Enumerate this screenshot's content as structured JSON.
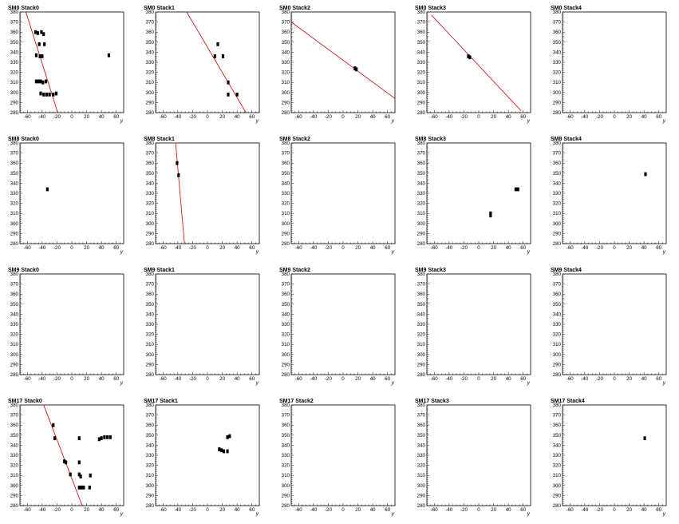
{
  "chart_data": [
    {
      "type": "scatter",
      "title": "SM0 Stack0",
      "xlabel": "y",
      "xlim": [
        -70,
        70
      ],
      "ylim": [
        280,
        380
      ],
      "xticks": [
        -60,
        -40,
        -20,
        0,
        20,
        40,
        60
      ],
      "yticks": [
        280,
        290,
        300,
        310,
        320,
        330,
        340,
        350,
        360,
        370,
        380
      ],
      "points": [
        [
          -49,
          360
        ],
        [
          -46,
          359
        ],
        [
          -41,
          360
        ],
        [
          -38,
          358
        ],
        [
          -44,
          348
        ],
        [
          -37,
          348
        ],
        [
          -48,
          337
        ],
        [
          -43,
          336
        ],
        [
          -40,
          336
        ],
        [
          -48,
          311
        ],
        [
          -45,
          311
        ],
        [
          -42,
          311
        ],
        [
          -39,
          310
        ],
        [
          -35,
          311
        ],
        [
          -42,
          299
        ],
        [
          -38,
          298
        ],
        [
          -34,
          298
        ],
        [
          -30,
          298
        ],
        [
          -25,
          298
        ],
        [
          -21,
          299
        ],
        [
          50,
          337
        ]
      ],
      "line": {
        "x": [
          -62,
          -19
        ],
        "y": [
          380,
          280
        ]
      }
    },
    {
      "type": "scatter",
      "title": "SM0 Stack1",
      "xlabel": "y",
      "xlim": [
        -70,
        70
      ],
      "ylim": [
        280,
        380
      ],
      "xticks": [
        -60,
        -40,
        -20,
        0,
        20,
        40,
        60
      ],
      "yticks": [
        280,
        290,
        300,
        310,
        320,
        330,
        340,
        350,
        360,
        370,
        380
      ],
      "points": [
        [
          14,
          348
        ],
        [
          10,
          336
        ],
        [
          21,
          336
        ],
        [
          28,
          310
        ],
        [
          28,
          298
        ],
        [
          40,
          298
        ]
      ],
      "line": {
        "x": [
          -28,
          52
        ],
        "y": [
          380,
          280
        ]
      }
    },
    {
      "type": "scatter",
      "title": "SM0 Stack2",
      "xlabel": "y",
      "xlim": [
        -70,
        70
      ],
      "ylim": [
        280,
        380
      ],
      "xticks": [
        -60,
        -40,
        -20,
        0,
        20,
        40,
        60
      ],
      "yticks": [
        280,
        290,
        300,
        310,
        320,
        330,
        340,
        350,
        360,
        370,
        380
      ],
      "points": [
        [
          16,
          324
        ],
        [
          18,
          323
        ]
      ],
      "line": {
        "x": [
          -70,
          70
        ],
        "y": [
          370,
          294
        ]
      }
    },
    {
      "type": "scatter",
      "title": "SM0 Stack3",
      "xlabel": "y",
      "xlim": [
        -70,
        70
      ],
      "ylim": [
        280,
        380
      ],
      "xticks": [
        -60,
        -40,
        -20,
        0,
        20,
        40,
        60
      ],
      "yticks": [
        280,
        290,
        300,
        310,
        320,
        330,
        340,
        350,
        360,
        370,
        380
      ],
      "points": [
        [
          -14,
          336
        ],
        [
          -12,
          335
        ]
      ],
      "line": {
        "x": [
          -64,
          57
        ],
        "y": [
          377,
          282
        ]
      }
    },
    {
      "type": "scatter",
      "title": "SM0 Stack4",
      "xlabel": "y",
      "xlim": [
        -70,
        70
      ],
      "ylim": [
        280,
        380
      ],
      "xticks": [
        -60,
        -40,
        -20,
        0,
        20,
        40,
        60
      ],
      "yticks": [
        280,
        290,
        300,
        310,
        320,
        330,
        340,
        350,
        360,
        370,
        380
      ],
      "points": []
    },
    {
      "type": "scatter",
      "title": "SM8 Stack0",
      "xlabel": "y",
      "xlim": [
        -70,
        70
      ],
      "ylim": [
        280,
        380
      ],
      "xticks": [
        -60,
        -40,
        -20,
        0,
        20,
        40,
        60
      ],
      "yticks": [
        280,
        290,
        300,
        310,
        320,
        330,
        340,
        350,
        360,
        370,
        380
      ],
      "points": [
        [
          -33,
          334
        ]
      ]
    },
    {
      "type": "scatter",
      "title": "SM8 Stack1",
      "xlabel": "y",
      "xlim": [
        -70,
        70
      ],
      "ylim": [
        280,
        380
      ],
      "xticks": [
        -60,
        -40,
        -20,
        0,
        20,
        40,
        60
      ],
      "yticks": [
        280,
        290,
        300,
        310,
        320,
        330,
        340,
        350,
        360,
        370,
        380
      ],
      "points": [
        [
          -41,
          360
        ],
        [
          -39,
          348
        ]
      ],
      "line": {
        "x": [
          -43,
          -31
        ],
        "y": [
          380,
          280
        ]
      }
    },
    {
      "type": "scatter",
      "title": "SM8 Stack2",
      "xlabel": "y",
      "xlim": [
        -70,
        70
      ],
      "ylim": [
        280,
        380
      ],
      "xticks": [
        -60,
        -40,
        -20,
        0,
        20,
        40,
        60
      ],
      "yticks": [
        280,
        290,
        300,
        310,
        320,
        330,
        340,
        350,
        360,
        370,
        380
      ],
      "points": []
    },
    {
      "type": "scatter",
      "title": "SM8 Stack3",
      "xlabel": "y",
      "xlim": [
        -70,
        70
      ],
      "ylim": [
        280,
        380
      ],
      "xticks": [
        -60,
        -40,
        -20,
        0,
        20,
        40,
        60
      ],
      "yticks": [
        280,
        290,
        300,
        310,
        320,
        330,
        340,
        350,
        360,
        370,
        380
      ],
      "points": [
        [
          16,
          310
        ],
        [
          16,
          308
        ],
        [
          50,
          334
        ],
        [
          53,
          334
        ]
      ]
    },
    {
      "type": "scatter",
      "title": "SM8 Stack4",
      "xlabel": "y",
      "xlim": [
        -70,
        70
      ],
      "ylim": [
        280,
        380
      ],
      "xticks": [
        -60,
        -40,
        -20,
        0,
        20,
        40,
        60
      ],
      "yticks": [
        280,
        290,
        300,
        310,
        320,
        330,
        340,
        350,
        360,
        370,
        380
      ],
      "points": [
        [
          42,
          349
        ]
      ]
    },
    {
      "type": "scatter",
      "title": "SM9 Stack0",
      "xlabel": "y",
      "xlim": [
        -70,
        70
      ],
      "ylim": [
        280,
        380
      ],
      "xticks": [
        -60,
        -40,
        -20,
        0,
        20,
        40,
        60
      ],
      "yticks": [
        280,
        290,
        300,
        310,
        320,
        330,
        340,
        350,
        360,
        370,
        380
      ],
      "points": []
    },
    {
      "type": "scatter",
      "title": "SM9 Stack1",
      "xlabel": "y",
      "xlim": [
        -70,
        70
      ],
      "ylim": [
        280,
        380
      ],
      "xticks": [
        -60,
        -40,
        -20,
        0,
        20,
        40,
        60
      ],
      "yticks": [
        280,
        290,
        300,
        310,
        320,
        330,
        340,
        350,
        360,
        370,
        380
      ],
      "points": []
    },
    {
      "type": "scatter",
      "title": "SM9 Stack2",
      "xlabel": "y",
      "xlim": [
        -70,
        70
      ],
      "ylim": [
        280,
        380
      ],
      "xticks": [
        -60,
        -40,
        -20,
        0,
        20,
        40,
        60
      ],
      "yticks": [
        280,
        290,
        300,
        310,
        320,
        330,
        340,
        350,
        360,
        370,
        380
      ],
      "points": []
    },
    {
      "type": "scatter",
      "title": "SM9 Stack3",
      "xlabel": "y",
      "xlim": [
        -70,
        70
      ],
      "ylim": [
        280,
        380
      ],
      "xticks": [
        -60,
        -40,
        -20,
        0,
        20,
        40,
        60
      ],
      "yticks": [
        280,
        290,
        300,
        310,
        320,
        330,
        340,
        350,
        360,
        370,
        380
      ],
      "points": []
    },
    {
      "type": "scatter",
      "title": "SM9 Stack4",
      "xlabel": "y",
      "xlim": [
        -70,
        70
      ],
      "ylim": [
        280,
        380
      ],
      "xticks": [
        -60,
        -40,
        -20,
        0,
        20,
        40,
        60
      ],
      "yticks": [
        280,
        290,
        300,
        310,
        320,
        330,
        340,
        350,
        360,
        370,
        380
      ],
      "points": []
    },
    {
      "type": "scatter",
      "title": "SM17 Stack0",
      "xlabel": "y",
      "xlim": [
        -70,
        70
      ],
      "ylim": [
        280,
        380
      ],
      "xticks": [
        -60,
        -40,
        -20,
        0,
        20,
        40,
        60
      ],
      "yticks": [
        280,
        290,
        300,
        310,
        320,
        330,
        340,
        350,
        360,
        370,
        380
      ],
      "points": [
        [
          -25,
          360
        ],
        [
          -23,
          347
        ],
        [
          -10,
          324
        ],
        [
          -8,
          323
        ],
        [
          10,
          323
        ],
        [
          -2,
          311
        ],
        [
          10,
          311
        ],
        [
          12,
          309
        ],
        [
          10,
          298
        ],
        [
          13,
          298
        ],
        [
          16,
          298
        ],
        [
          24,
          298
        ],
        [
          10,
          347
        ],
        [
          25,
          310
        ],
        [
          37,
          346
        ],
        [
          40,
          347
        ],
        [
          44,
          348
        ],
        [
          48,
          348
        ],
        [
          52,
          348
        ]
      ],
      "line": {
        "x": [
          -38,
          14
        ],
        "y": [
          380,
          280
        ]
      }
    },
    {
      "type": "scatter",
      "title": "SM17 Stack1",
      "xlabel": "y",
      "xlim": [
        -70,
        70
      ],
      "ylim": [
        280,
        380
      ],
      "xticks": [
        -60,
        -40,
        -20,
        0,
        20,
        40,
        60
      ],
      "yticks": [
        280,
        290,
        300,
        310,
        320,
        330,
        340,
        350,
        360,
        370,
        380
      ],
      "points": [
        [
          16,
          336
        ],
        [
          19,
          335
        ],
        [
          22,
          334
        ],
        [
          27,
          334
        ],
        [
          27,
          348
        ],
        [
          30,
          349
        ]
      ]
    },
    {
      "type": "scatter",
      "title": "SM17 Stack2",
      "xlabel": "y",
      "xlim": [
        -70,
        70
      ],
      "ylim": [
        280,
        380
      ],
      "xticks": [
        -60,
        -40,
        -20,
        0,
        20,
        40,
        60
      ],
      "yticks": [
        280,
        290,
        300,
        310,
        320,
        330,
        340,
        350,
        360,
        370,
        380
      ],
      "points": []
    },
    {
      "type": "scatter",
      "title": "SM17 Stack3",
      "xlabel": "y",
      "xlim": [
        -70,
        70
      ],
      "ylim": [
        280,
        380
      ],
      "xticks": [
        -60,
        -40,
        -20,
        0,
        20,
        40,
        60
      ],
      "yticks": [
        280,
        290,
        300,
        310,
        320,
        330,
        340,
        350,
        360,
        370,
        380
      ],
      "points": []
    },
    {
      "type": "scatter",
      "title": "SM17 Stack4",
      "xlabel": "y",
      "xlim": [
        -70,
        70
      ],
      "ylim": [
        280,
        380
      ],
      "xticks": [
        -60,
        -40,
        -20,
        0,
        20,
        40,
        60
      ],
      "yticks": [
        280,
        290,
        300,
        310,
        320,
        330,
        340,
        350,
        360,
        370,
        380
      ],
      "points": [
        [
          41,
          347
        ]
      ]
    }
  ],
  "colors": {
    "fit_line": "#cc0000",
    "marker": "#000000",
    "axis": "#000000",
    "background": "#ffffff"
  }
}
